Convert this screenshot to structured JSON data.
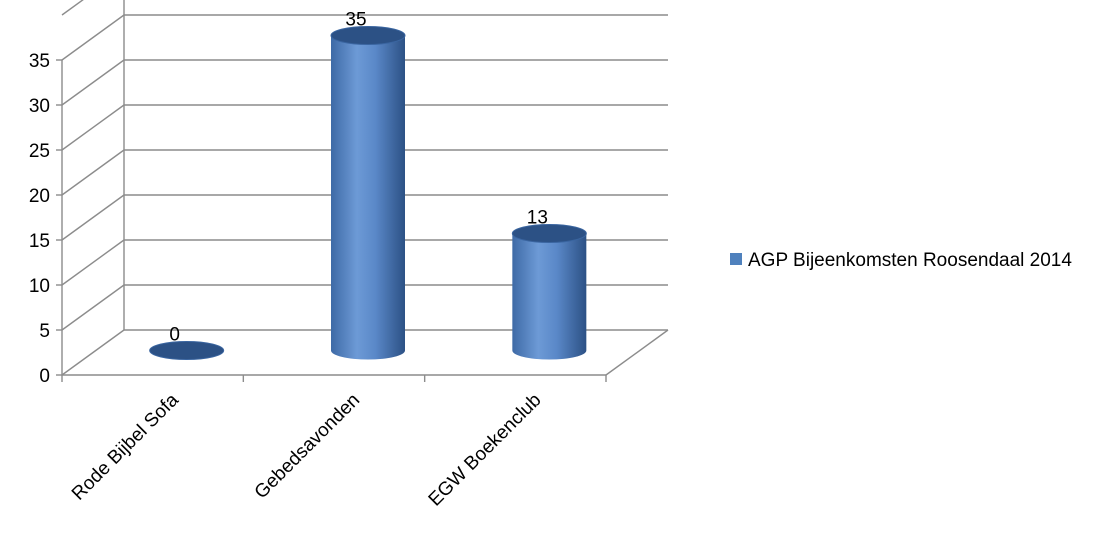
{
  "chart_data": {
    "type": "bar",
    "style": "3d-cylinder",
    "categories": [
      "Rode Bijbel Sofa",
      "Gebedsavonden",
      "EGW Boekenclub"
    ],
    "series": [
      {
        "name": "AGP Bijeenkomsten Roosendaal 2014",
        "values": [
          0,
          35,
          13
        ],
        "color": "#4f81bd"
      }
    ],
    "data_labels": [
      "0",
      "35",
      "13"
    ],
    "y_ticks": [
      "0",
      "5",
      "10",
      "15",
      "20",
      "25",
      "30",
      "35"
    ],
    "ylim": [
      0,
      40
    ],
    "grid": true,
    "legend_position": "right",
    "colors": {
      "bar": "#4f81bd",
      "bar_dark": "#2c5185",
      "bar_light": "#8fb3e3",
      "grid": "#8c8c8c"
    }
  },
  "legend": {
    "label": "AGP Bijeenkomsten Roosendaal 2014"
  }
}
